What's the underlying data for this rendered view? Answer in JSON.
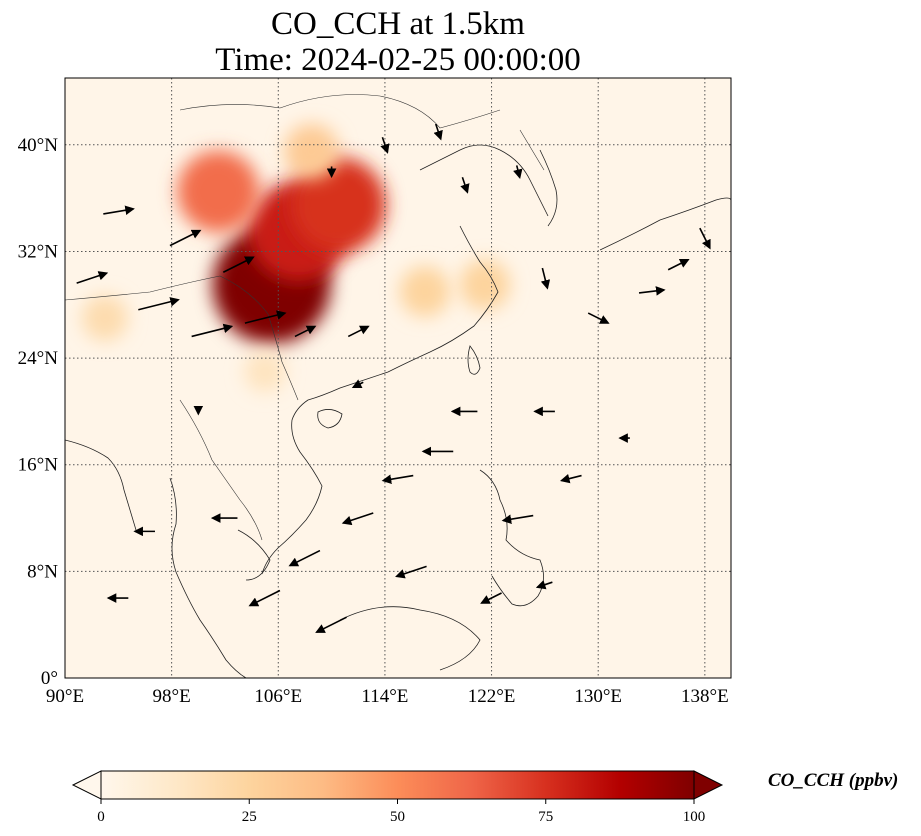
{
  "title": {
    "line1": "CO_CCH at 1.5km",
    "line2": "Time: 2024-02-25 00:00:00"
  },
  "map": {
    "type": "heatmap",
    "projection": "PlateCarree",
    "lon_range": [
      90,
      140
    ],
    "lat_range": [
      0,
      44
    ],
    "gridlines": true,
    "x_ticks": [
      "90°E",
      "98°E",
      "106°E",
      "114°E",
      "122°E",
      "130°E",
      "138°E"
    ],
    "y_ticks": [
      "0°",
      "8°N",
      "16°N",
      "24°N",
      "32°N",
      "40°N"
    ],
    "field_name": "CO_CCH",
    "units": "ppbv",
    "hotspots": [
      {
        "lon": 105.5,
        "lat": 29.5,
        "value": 100
      },
      {
        "lon": 107.5,
        "lat": 33.5,
        "value": 80
      },
      {
        "lon": 110.5,
        "lat": 35.5,
        "value": 75
      },
      {
        "lon": 101.5,
        "lat": 36.5,
        "value": 60
      },
      {
        "lon": 108.5,
        "lat": 39.5,
        "value": 30
      },
      {
        "lon": 117.0,
        "lat": 29.0,
        "value": 25
      },
      {
        "lon": 121.5,
        "lat": 29.5,
        "value": 25
      },
      {
        "lon": 93.0,
        "lat": 27.0,
        "value": 20
      },
      {
        "lon": 105.0,
        "lat": 23.0,
        "value": 15
      }
    ],
    "wind_vectors": [
      {
        "lon": 92,
        "lat": 30,
        "u": 3,
        "v": 1
      },
      {
        "lon": 94,
        "lat": 35,
        "u": 3,
        "v": 0.5
      },
      {
        "lon": 97,
        "lat": 28,
        "u": 4,
        "v": 1
      },
      {
        "lon": 99,
        "lat": 33,
        "u": 3,
        "v": 1.5
      },
      {
        "lon": 101,
        "lat": 26,
        "u": 4,
        "v": 1
      },
      {
        "lon": 103,
        "lat": 31,
        "u": 3,
        "v": 1.5
      },
      {
        "lon": 105,
        "lat": 27,
        "u": 4,
        "v": 1
      },
      {
        "lon": 108,
        "lat": 26,
        "u": 2,
        "v": 1
      },
      {
        "lon": 112,
        "lat": 26,
        "u": 2,
        "v": 1
      },
      {
        "lon": 110,
        "lat": 38,
        "u": 0,
        "v": -1
      },
      {
        "lon": 114,
        "lat": 40,
        "u": 0.5,
        "v": -1.5
      },
      {
        "lon": 118,
        "lat": 41,
        "u": 0.5,
        "v": -1.5
      },
      {
        "lon": 120,
        "lat": 37,
        "u": 0.5,
        "v": -1.5
      },
      {
        "lon": 124,
        "lat": 38,
        "u": 0.3,
        "v": -1.2
      },
      {
        "lon": 126,
        "lat": 30,
        "u": 0.5,
        "v": -2
      },
      {
        "lon": 130,
        "lat": 27,
        "u": 2,
        "v": -1
      },
      {
        "lon": 134,
        "lat": 29,
        "u": 2.5,
        "v": 0.3
      },
      {
        "lon": 136,
        "lat": 31,
        "u": 2,
        "v": 1
      },
      {
        "lon": 138,
        "lat": 33,
        "u": 1,
        "v": -2
      },
      {
        "lon": 120,
        "lat": 20,
        "u": -2.5,
        "v": 0
      },
      {
        "lon": 118,
        "lat": 17,
        "u": -3,
        "v": 0
      },
      {
        "lon": 115,
        "lat": 15,
        "u": -3,
        "v": -0.5
      },
      {
        "lon": 112,
        "lat": 12,
        "u": -3,
        "v": -1
      },
      {
        "lon": 108,
        "lat": 9,
        "u": -3,
        "v": -1.5
      },
      {
        "lon": 105,
        "lat": 6,
        "u": -3,
        "v": -1.5
      },
      {
        "lon": 110,
        "lat": 4,
        "u": -3,
        "v": -1.5
      },
      {
        "lon": 102,
        "lat": 12,
        "u": -2.5,
        "v": 0
      },
      {
        "lon": 96,
        "lat": 11,
        "u": -2,
        "v": 0
      },
      {
        "lon": 94,
        "lat": 6,
        "u": -2,
        "v": 0
      },
      {
        "lon": 126,
        "lat": 20,
        "u": -2,
        "v": 0
      },
      {
        "lon": 124,
        "lat": 12,
        "u": -3,
        "v": -0.5
      },
      {
        "lon": 128,
        "lat": 15,
        "u": -2,
        "v": -0.5
      },
      {
        "lon": 132,
        "lat": 18,
        "u": -1,
        "v": 0
      },
      {
        "lon": 116,
        "lat": 8,
        "u": -3,
        "v": -1
      },
      {
        "lon": 122,
        "lat": 6,
        "u": -2,
        "v": -1
      },
      {
        "lon": 126,
        "lat": 7,
        "u": -1.5,
        "v": -0.5
      },
      {
        "lon": 100,
        "lat": 20,
        "u": 0,
        "v": -0.5
      },
      {
        "lon": 112,
        "lat": 22,
        "u": -1,
        "v": -0.5
      }
    ]
  },
  "colorbar": {
    "label": "CO_CCH (ppbv)",
    "ticks": [
      "0",
      "25",
      "50",
      "75",
      "100"
    ],
    "range": [
      0,
      100
    ],
    "colormap": "OrRd",
    "colors": [
      "#fff7ec",
      "#fee8c8",
      "#fdd49e",
      "#fdbb84",
      "#fc8d59",
      "#ef6548",
      "#d7301f",
      "#b30000",
      "#7f0000"
    ]
  }
}
